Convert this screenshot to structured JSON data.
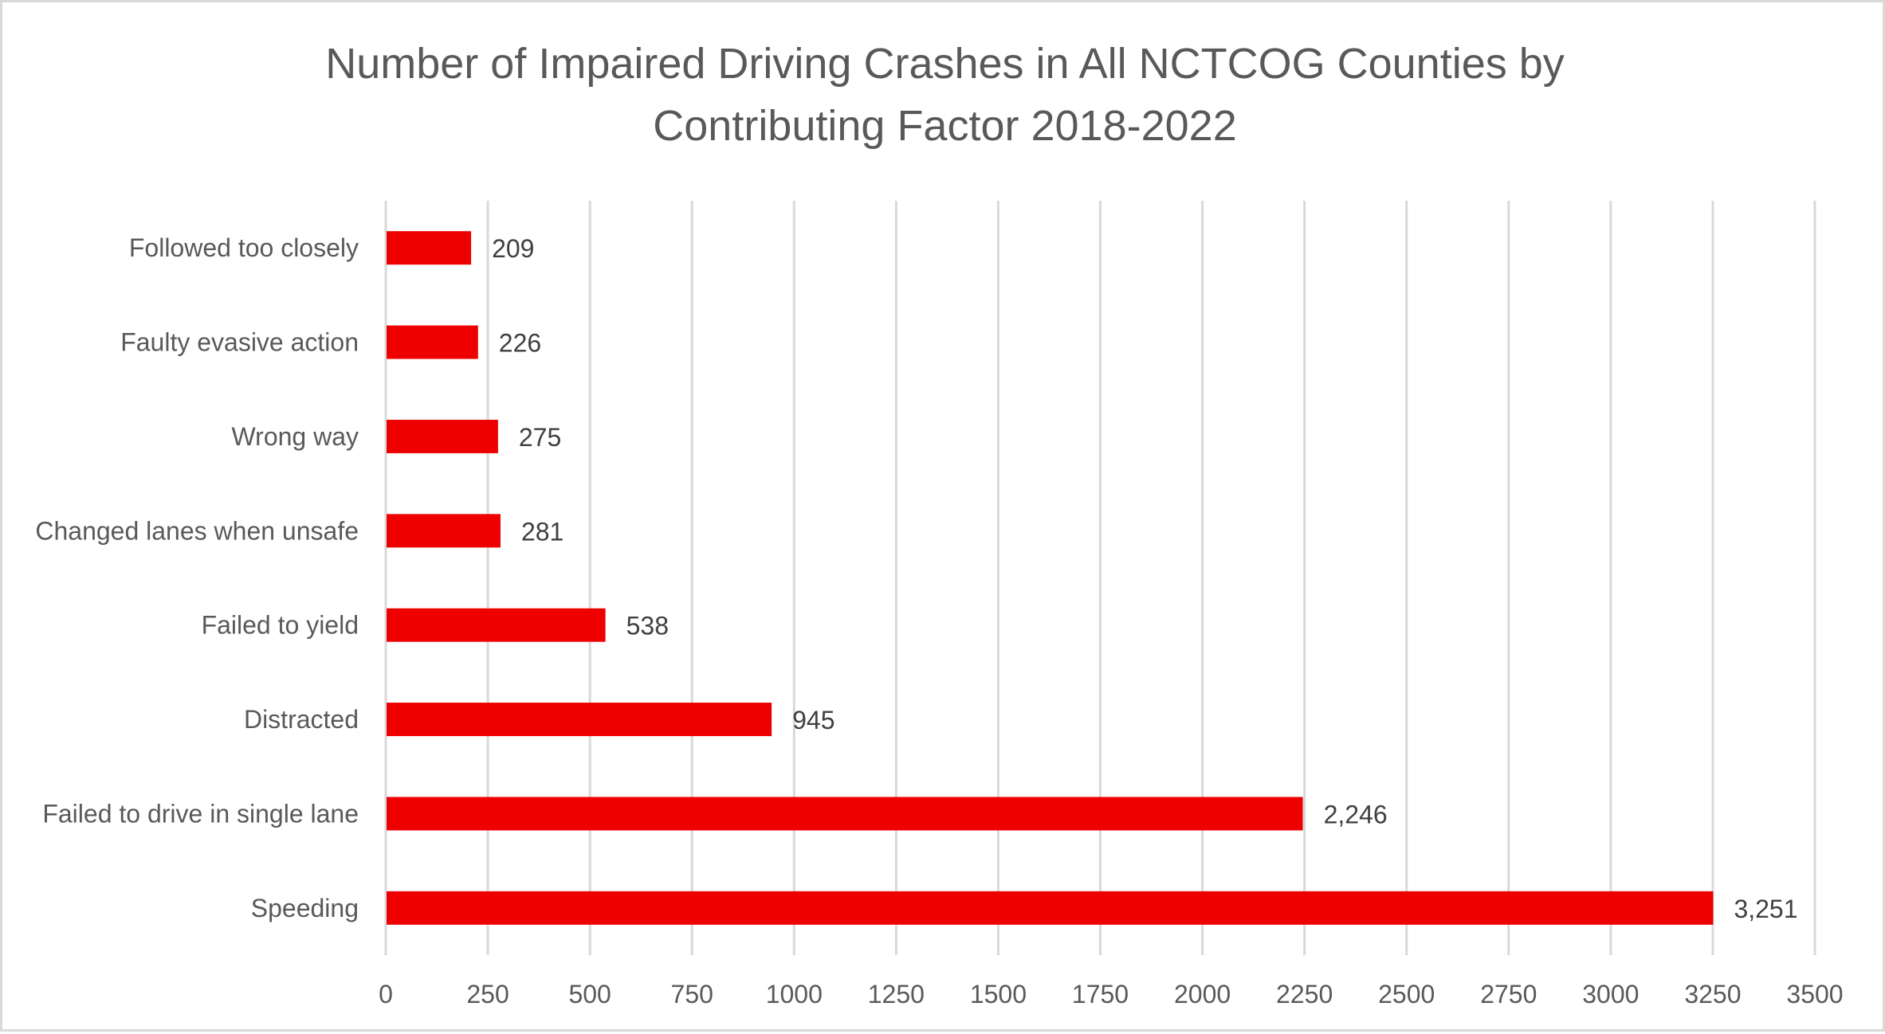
{
  "chart_data": {
    "type": "bar",
    "orientation": "horizontal",
    "title": "Number of Impaired Driving Crashes in All NCTCOG Counties by Contributing Factor 2018-2022",
    "title_lines": [
      "Number of Impaired Driving Crashes in All NCTCOG Counties by",
      "Contributing Factor 2018-2022"
    ],
    "xlabel": "",
    "ylabel": "",
    "categories": [
      "Followed too closely",
      "Faulty evasive action",
      "Wrong way",
      "Changed lanes when unsafe",
      "Failed to yield",
      "Distracted",
      "Failed to drive in single lane",
      "Speeding"
    ],
    "values": [
      209,
      226,
      275,
      281,
      538,
      945,
      2246,
      3251
    ],
    "data_labels": [
      "209",
      "226",
      "275",
      "281",
      "538",
      "945",
      "2,246",
      "3,251"
    ],
    "xlim": [
      0,
      3500
    ],
    "x_ticks": [
      0,
      250,
      500,
      750,
      1000,
      1250,
      1500,
      1750,
      2000,
      2250,
      2500,
      2750,
      3000,
      3250,
      3500
    ],
    "x_tick_labels": [
      "0",
      "250",
      "500",
      "750",
      "1000",
      "1250",
      "1500",
      "1750",
      "2000",
      "2250",
      "2500",
      "2750",
      "3000",
      "3250",
      "3500"
    ],
    "grid": "vertical",
    "legend": "none",
    "colors": {
      "bar": "#ee0000",
      "grid": "#d9d9d9",
      "text": "#595959",
      "data_label": "#404040"
    }
  }
}
